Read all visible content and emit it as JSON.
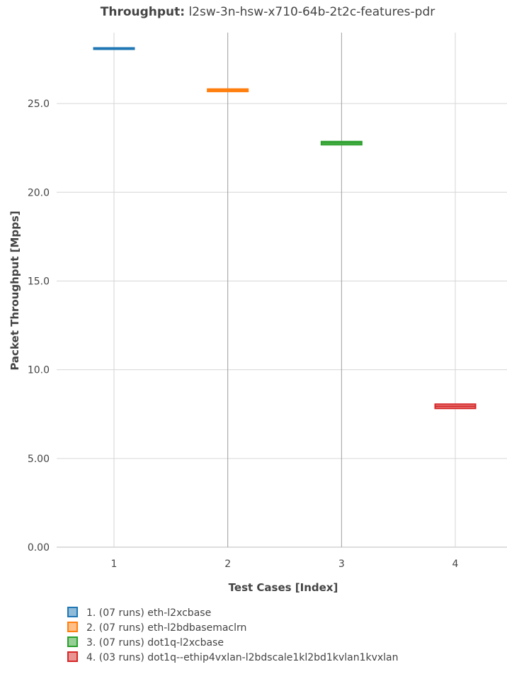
{
  "chart_data": {
    "type": "box",
    "title_bold": "Throughput:",
    "title_rest": " l2sw-3n-hsw-x710-64b-2t2c-features-pdr",
    "xlabel": "Test Cases [Index]",
    "ylabel": "Packet Throughput [Mpps]",
    "categories": [
      "1",
      "2",
      "3",
      "4"
    ],
    "y_ticks": [
      "0.00",
      "5.00",
      "10.0",
      "15.0",
      "20.0",
      "25.0"
    ],
    "ylim": [
      0,
      29
    ],
    "grid": true,
    "legend_position": "bottom",
    "series": [
      {
        "name": "1. (07 runs) eth-l2xcbase",
        "color": "#1f77b4",
        "fill": "#8fbbd9",
        "x": 1,
        "low": 28.08,
        "high": 28.14,
        "median": 28.11
      },
      {
        "name": "2. (07 runs) eth-l2bdbasemaclrn",
        "color": "#ff7f0e",
        "fill": "#ffbf86",
        "x": 2,
        "low": 25.68,
        "high": 25.82,
        "median": 25.76
      },
      {
        "name": "3. (07 runs) dot1q-l2xcbase",
        "color": "#2ca02c",
        "fill": "#95cf95",
        "x": 3,
        "low": 22.68,
        "high": 22.86,
        "median": 22.78
      },
      {
        "name": "4. (03 runs) dot1q--ethip4vxlan-l2bdscale1kl2bd1kvlan1kvxlan",
        "color": "#d62728",
        "fill": "#ea9393",
        "x": 4,
        "low": 7.82,
        "high": 8.06,
        "median": 7.94
      }
    ]
  }
}
